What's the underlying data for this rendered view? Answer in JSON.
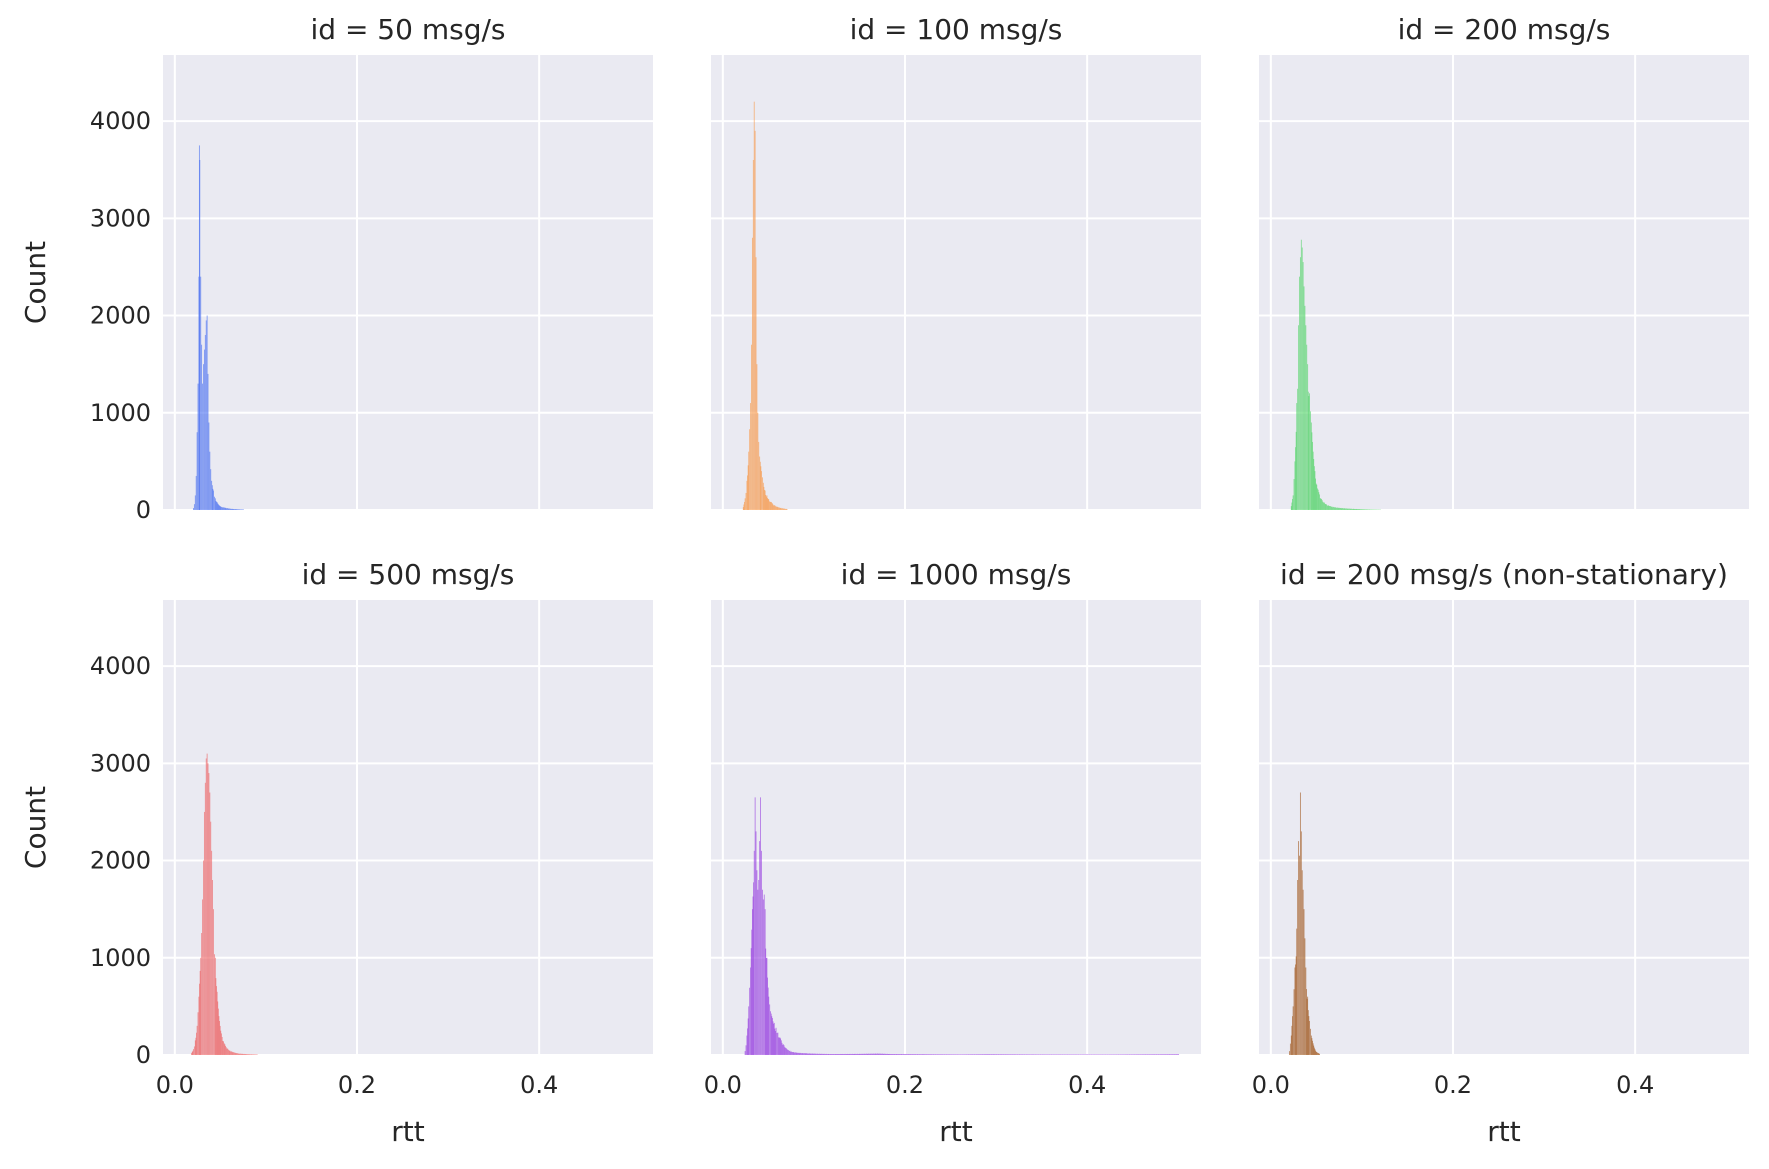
{
  "chart_data": [
    {
      "type": "bar",
      "title": "id = 50 msg/s",
      "xlabel": "",
      "ylabel": "Count",
      "xlim": [
        -0.013,
        0.525
      ],
      "ylim": [
        0,
        4680
      ],
      "xticks": [
        0.0,
        0.2,
        0.4
      ],
      "yticks": [
        0,
        1000,
        2000,
        3000,
        4000
      ],
      "grid": true,
      "color": "#4c72f0",
      "peaks": [
        {
          "x": 0.02,
          "y": 20
        },
        {
          "x": 0.021,
          "y": 60
        },
        {
          "x": 0.022,
          "y": 150
        },
        {
          "x": 0.023,
          "y": 350
        },
        {
          "x": 0.024,
          "y": 800
        },
        {
          "x": 0.025,
          "y": 1300
        },
        {
          "x": 0.026,
          "y": 2400
        },
        {
          "x": 0.0265,
          "y": 3750
        },
        {
          "x": 0.027,
          "y": 3600
        },
        {
          "x": 0.028,
          "y": 2400
        },
        {
          "x": 0.029,
          "y": 1700
        },
        {
          "x": 0.03,
          "y": 1300
        },
        {
          "x": 0.031,
          "y": 1500
        },
        {
          "x": 0.032,
          "y": 1650
        },
        {
          "x": 0.033,
          "y": 1800
        },
        {
          "x": 0.034,
          "y": 1950
        },
        {
          "x": 0.035,
          "y": 2000
        },
        {
          "x": 0.036,
          "y": 1400
        },
        {
          "x": 0.037,
          "y": 900
        },
        {
          "x": 0.038,
          "y": 600
        },
        {
          "x": 0.039,
          "y": 420
        },
        {
          "x": 0.04,
          "y": 300
        },
        {
          "x": 0.042,
          "y": 200
        },
        {
          "x": 0.044,
          "y": 120
        },
        {
          "x": 0.046,
          "y": 80
        },
        {
          "x": 0.048,
          "y": 50
        },
        {
          "x": 0.05,
          "y": 35
        },
        {
          "x": 0.054,
          "y": 25
        },
        {
          "x": 0.058,
          "y": 18
        },
        {
          "x": 0.062,
          "y": 12
        },
        {
          "x": 0.068,
          "y": 8
        },
        {
          "x": 0.075,
          "y": 5
        }
      ]
    },
    {
      "type": "bar",
      "title": "id = 100 msg/s",
      "xlabel": "",
      "ylabel": "",
      "xlim": [
        -0.013,
        0.525
      ],
      "ylim": [
        0,
        4680
      ],
      "xticks": [
        0.0,
        0.2,
        0.4
      ],
      "yticks": [
        0,
        1000,
        2000,
        3000,
        4000
      ],
      "grid": true,
      "color": "#f79a4c",
      "peaks": [
        {
          "x": 0.022,
          "y": 30
        },
        {
          "x": 0.024,
          "y": 120
        },
        {
          "x": 0.026,
          "y": 300
        },
        {
          "x": 0.028,
          "y": 600
        },
        {
          "x": 0.03,
          "y": 1100
        },
        {
          "x": 0.031,
          "y": 1700
        },
        {
          "x": 0.032,
          "y": 2800
        },
        {
          "x": 0.033,
          "y": 3600
        },
        {
          "x": 0.034,
          "y": 4200
        },
        {
          "x": 0.035,
          "y": 3900
        },
        {
          "x": 0.036,
          "y": 2600
        },
        {
          "x": 0.037,
          "y": 1500
        },
        {
          "x": 0.038,
          "y": 1000
        },
        {
          "x": 0.039,
          "y": 700
        },
        {
          "x": 0.04,
          "y": 550
        },
        {
          "x": 0.042,
          "y": 400
        },
        {
          "x": 0.044,
          "y": 280
        },
        {
          "x": 0.046,
          "y": 200
        },
        {
          "x": 0.048,
          "y": 150
        },
        {
          "x": 0.05,
          "y": 110
        },
        {
          "x": 0.053,
          "y": 80
        },
        {
          "x": 0.056,
          "y": 50
        },
        {
          "x": 0.06,
          "y": 30
        },
        {
          "x": 0.065,
          "y": 18
        },
        {
          "x": 0.07,
          "y": 10
        }
      ]
    },
    {
      "type": "bar",
      "title": "id = 200 msg/s",
      "xlabel": "",
      "ylabel": "",
      "xlim": [
        -0.013,
        0.525
      ],
      "ylim": [
        0,
        4680
      ],
      "xticks": [
        0.0,
        0.2,
        0.4
      ],
      "yticks": [
        0,
        1000,
        2000,
        3000,
        4000
      ],
      "grid": true,
      "color": "#57d46c",
      "peaks": [
        {
          "x": 0.022,
          "y": 40
        },
        {
          "x": 0.024,
          "y": 150
        },
        {
          "x": 0.026,
          "y": 500
        },
        {
          "x": 0.028,
          "y": 1100
        },
        {
          "x": 0.03,
          "y": 1900
        },
        {
          "x": 0.031,
          "y": 2400
        },
        {
          "x": 0.032,
          "y": 2600
        },
        {
          "x": 0.033,
          "y": 2780
        },
        {
          "x": 0.034,
          "y": 2700
        },
        {
          "x": 0.035,
          "y": 2550
        },
        {
          "x": 0.036,
          "y": 2300
        },
        {
          "x": 0.037,
          "y": 2100
        },
        {
          "x": 0.038,
          "y": 1900
        },
        {
          "x": 0.039,
          "y": 1700
        },
        {
          "x": 0.04,
          "y": 1500
        },
        {
          "x": 0.042,
          "y": 1200
        },
        {
          "x": 0.044,
          "y": 900
        },
        {
          "x": 0.046,
          "y": 600
        },
        {
          "x": 0.048,
          "y": 400
        },
        {
          "x": 0.05,
          "y": 260
        },
        {
          "x": 0.053,
          "y": 160
        },
        {
          "x": 0.056,
          "y": 100
        },
        {
          "x": 0.06,
          "y": 60
        },
        {
          "x": 0.065,
          "y": 40
        },
        {
          "x": 0.07,
          "y": 28
        },
        {
          "x": 0.08,
          "y": 18
        },
        {
          "x": 0.09,
          "y": 12
        },
        {
          "x": 0.1,
          "y": 8
        },
        {
          "x": 0.11,
          "y": 5
        },
        {
          "x": 0.12,
          "y": 3
        }
      ]
    },
    {
      "type": "bar",
      "title": "id = 500 msg/s",
      "xlabel": "rtt",
      "ylabel": "Count",
      "xlim": [
        -0.013,
        0.525
      ],
      "ylim": [
        0,
        4680
      ],
      "xticks": [
        0.0,
        0.2,
        0.4
      ],
      "yticks": [
        0,
        1000,
        2000,
        3000,
        4000
      ],
      "grid": true,
      "color": "#ec6466",
      "peaks": [
        {
          "x": 0.018,
          "y": 20
        },
        {
          "x": 0.02,
          "y": 60
        },
        {
          "x": 0.022,
          "y": 150
        },
        {
          "x": 0.024,
          "y": 300
        },
        {
          "x": 0.026,
          "y": 600
        },
        {
          "x": 0.028,
          "y": 1000
        },
        {
          "x": 0.03,
          "y": 1600
        },
        {
          "x": 0.031,
          "y": 2000
        },
        {
          "x": 0.032,
          "y": 2500
        },
        {
          "x": 0.033,
          "y": 2800
        },
        {
          "x": 0.034,
          "y": 3050
        },
        {
          "x": 0.035,
          "y": 3100
        },
        {
          "x": 0.036,
          "y": 3000
        },
        {
          "x": 0.037,
          "y": 2900
        },
        {
          "x": 0.038,
          "y": 2700
        },
        {
          "x": 0.039,
          "y": 2400
        },
        {
          "x": 0.04,
          "y": 2100
        },
        {
          "x": 0.041,
          "y": 1800
        },
        {
          "x": 0.042,
          "y": 1500
        },
        {
          "x": 0.044,
          "y": 1000
        },
        {
          "x": 0.046,
          "y": 650
        },
        {
          "x": 0.048,
          "y": 400
        },
        {
          "x": 0.05,
          "y": 250
        },
        {
          "x": 0.053,
          "y": 140
        },
        {
          "x": 0.056,
          "y": 80
        },
        {
          "x": 0.06,
          "y": 45
        },
        {
          "x": 0.065,
          "y": 25
        },
        {
          "x": 0.07,
          "y": 15
        },
        {
          "x": 0.08,
          "y": 8
        },
        {
          "x": 0.09,
          "y": 5
        }
      ]
    },
    {
      "type": "bar",
      "title": "id = 1000 msg/s",
      "xlabel": "rtt",
      "ylabel": "",
      "xlim": [
        -0.013,
        0.525
      ],
      "ylim": [
        0,
        4680
      ],
      "xticks": [
        0.0,
        0.2,
        0.4
      ],
      "yticks": [
        0,
        1000,
        2000,
        3000,
        4000
      ],
      "grid": true,
      "color": "#9a44e0",
      "peaks": [
        {
          "x": 0.024,
          "y": 40
        },
        {
          "x": 0.026,
          "y": 200
        },
        {
          "x": 0.028,
          "y": 500
        },
        {
          "x": 0.03,
          "y": 900
        },
        {
          "x": 0.032,
          "y": 1500
        },
        {
          "x": 0.034,
          "y": 2100
        },
        {
          "x": 0.035,
          "y": 2650
        },
        {
          "x": 0.036,
          "y": 2300
        },
        {
          "x": 0.037,
          "y": 1900
        },
        {
          "x": 0.038,
          "y": 1700
        },
        {
          "x": 0.039,
          "y": 1800
        },
        {
          "x": 0.04,
          "y": 2200
        },
        {
          "x": 0.041,
          "y": 2650
        },
        {
          "x": 0.042,
          "y": 2100
        },
        {
          "x": 0.043,
          "y": 1700
        },
        {
          "x": 0.044,
          "y": 1600
        },
        {
          "x": 0.045,
          "y": 1650
        },
        {
          "x": 0.046,
          "y": 1500
        },
        {
          "x": 0.048,
          "y": 1000
        },
        {
          "x": 0.05,
          "y": 600
        },
        {
          "x": 0.052,
          "y": 450
        },
        {
          "x": 0.054,
          "y": 380
        },
        {
          "x": 0.056,
          "y": 330
        },
        {
          "x": 0.058,
          "y": 280
        },
        {
          "x": 0.06,
          "y": 230
        },
        {
          "x": 0.063,
          "y": 170
        },
        {
          "x": 0.066,
          "y": 110
        },
        {
          "x": 0.07,
          "y": 60
        },
        {
          "x": 0.075,
          "y": 35
        },
        {
          "x": 0.08,
          "y": 25
        },
        {
          "x": 0.09,
          "y": 18
        },
        {
          "x": 0.1,
          "y": 14
        },
        {
          "x": 0.12,
          "y": 10
        },
        {
          "x": 0.15,
          "y": 12
        },
        {
          "x": 0.17,
          "y": 15
        },
        {
          "x": 0.185,
          "y": 10
        },
        {
          "x": 0.22,
          "y": 8
        },
        {
          "x": 0.26,
          "y": 6
        },
        {
          "x": 0.29,
          "y": 8
        },
        {
          "x": 0.34,
          "y": 6
        },
        {
          "x": 0.42,
          "y": 5
        },
        {
          "x": 0.5,
          "y": 8
        }
      ]
    },
    {
      "type": "bar",
      "title": "id = 200 msg/s (non-stationary)",
      "xlabel": "rtt",
      "ylabel": "",
      "xlim": [
        -0.013,
        0.525
      ],
      "ylim": [
        0,
        4680
      ],
      "xticks": [
        0.0,
        0.2,
        0.4
      ],
      "yticks": [
        0,
        1000,
        2000,
        3000,
        4000
      ],
      "grid": true,
      "color": "#a35c24",
      "peaks": [
        {
          "x": 0.02,
          "y": 40
        },
        {
          "x": 0.022,
          "y": 200
        },
        {
          "x": 0.024,
          "y": 500
        },
        {
          "x": 0.026,
          "y": 900
        },
        {
          "x": 0.028,
          "y": 1300
        },
        {
          "x": 0.029,
          "y": 1800
        },
        {
          "x": 0.03,
          "y": 2200
        },
        {
          "x": 0.031,
          "y": 2050
        },
        {
          "x": 0.032,
          "y": 2700
        },
        {
          "x": 0.033,
          "y": 2300
        },
        {
          "x": 0.034,
          "y": 1900
        },
        {
          "x": 0.035,
          "y": 1700
        },
        {
          "x": 0.036,
          "y": 1500
        },
        {
          "x": 0.037,
          "y": 1200
        },
        {
          "x": 0.038,
          "y": 900
        },
        {
          "x": 0.04,
          "y": 600
        },
        {
          "x": 0.042,
          "y": 350
        },
        {
          "x": 0.044,
          "y": 200
        },
        {
          "x": 0.046,
          "y": 120
        },
        {
          "x": 0.048,
          "y": 60
        },
        {
          "x": 0.05,
          "y": 30
        },
        {
          "x": 0.053,
          "y": 12
        }
      ]
    }
  ]
}
